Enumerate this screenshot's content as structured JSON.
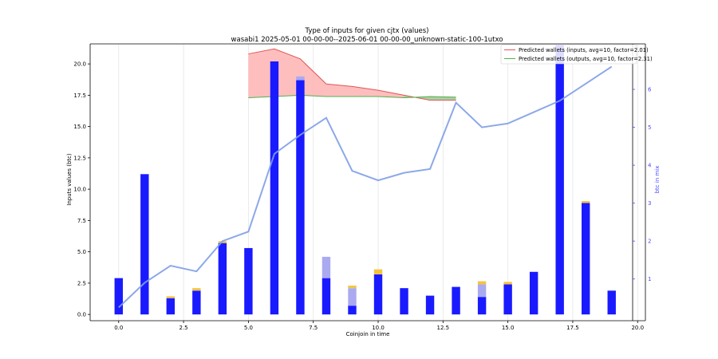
{
  "chart_data": {
    "type": "bar",
    "title": "Type of inputs for given cjtx (values)",
    "subtitle": "wasabi1 2025-05-01 00-00-00--2025-06-01 00-00-00_unknown-static-100-1utxo",
    "xlabel": "Coinjoin in time",
    "ylabel": "Inputs values (btc)",
    "y2label": "btc in mix",
    "xlim": [
      -1.1,
      20.3
    ],
    "ylim": [
      -0.5,
      21.6
    ],
    "y2lim": [
      -0.1,
      7.2
    ],
    "x_ticks": [
      "0.0",
      "2.5",
      "5.0",
      "7.5",
      "10.0",
      "12.5",
      "15.0",
      "17.5",
      "20.0"
    ],
    "x_tick_values": [
      0,
      2.5,
      5,
      7.5,
      10,
      12.5,
      15,
      17.5,
      20
    ],
    "y_ticks": [
      "0.0",
      "2.5",
      "5.0",
      "7.5",
      "10.0",
      "12.5",
      "15.0",
      "17.5",
      "20.0"
    ],
    "y_tick_values": [
      0,
      2.5,
      5,
      7.5,
      10,
      12.5,
      15,
      17.5,
      20
    ],
    "y2_ticks": [
      "1",
      "2",
      "3",
      "4",
      "5",
      "6"
    ],
    "y2_tick_values": [
      1,
      2,
      3,
      4,
      5,
      6
    ],
    "grid": "vertical",
    "legend_position": "top-right",
    "colors": {
      "bar_main": "#1a1aff",
      "bar_light": "#aaaaf0",
      "bar_top": "#f3c440",
      "line_mix": "#7f9ee6",
      "fill_inputs": "#ffb3b3",
      "fill_outputs": "#9ed49e",
      "line_inputs": "#e05555",
      "line_outputs": "#50b050",
      "y2_axis": "#4a4aff"
    },
    "categories": [
      0,
      1,
      2,
      3,
      4,
      5,
      6,
      7,
      8,
      9,
      10,
      11,
      12,
      13,
      14,
      15,
      16,
      17,
      18,
      19
    ],
    "series": [
      {
        "name": "",
        "color": "bar_main",
        "values": [
          2.9,
          11.2,
          1.3,
          1.9,
          5.7,
          5.3,
          20.2,
          18.7,
          2.9,
          0.7,
          3.2,
          2.1,
          1.5,
          2.2,
          1.4,
          2.4,
          3.4,
          21.5,
          8.9,
          1.9
        ]
      },
      {
        "name": "",
        "color": "bar_light",
        "values": [
          0,
          0,
          0,
          0,
          0,
          0,
          0,
          0.3,
          1.7,
          1.4,
          0,
          0,
          0,
          0,
          1.0,
          0,
          0,
          0,
          0,
          0
        ]
      },
      {
        "name": "",
        "color": "bar_top",
        "values": [
          0,
          0,
          0.15,
          0.2,
          0.15,
          0,
          0,
          0,
          0,
          0.2,
          0.4,
          0,
          0,
          0,
          0.25,
          0.2,
          0,
          0,
          0.15,
          0
        ]
      }
    ],
    "btc_in_mix": {
      "x": [
        0,
        1,
        2,
        3,
        4,
        5,
        6,
        7,
        8,
        9,
        10,
        11,
        12,
        13,
        14,
        15,
        16,
        17,
        18,
        19
      ],
      "values": [
        0.25,
        0.9,
        1.35,
        1.2,
        2.0,
        2.25,
        4.3,
        4.8,
        5.25,
        3.85,
        3.6,
        3.8,
        3.9,
        5.65,
        5.0,
        5.1,
        5.4,
        5.7,
        6.15,
        6.6
      ]
    },
    "predicted_inputs": {
      "name": "Predicted wallets (inputs, avg=10, factor=2.01)",
      "x": [
        5,
        6,
        7,
        8,
        9,
        10,
        11,
        12,
        13
      ],
      "values": [
        20.8,
        21.2,
        20.4,
        18.4,
        18.2,
        17.9,
        17.5,
        17.1,
        17.1
      ]
    },
    "predicted_outputs": {
      "name": "Predicted wallets (outputs, avg=10, factor=2.31)",
      "x": [
        5,
        6,
        7,
        8,
        9,
        10,
        11,
        12,
        13
      ],
      "values": [
        17.3,
        17.4,
        17.5,
        17.4,
        17.4,
        17.4,
        17.3,
        17.4,
        17.35
      ]
    }
  }
}
